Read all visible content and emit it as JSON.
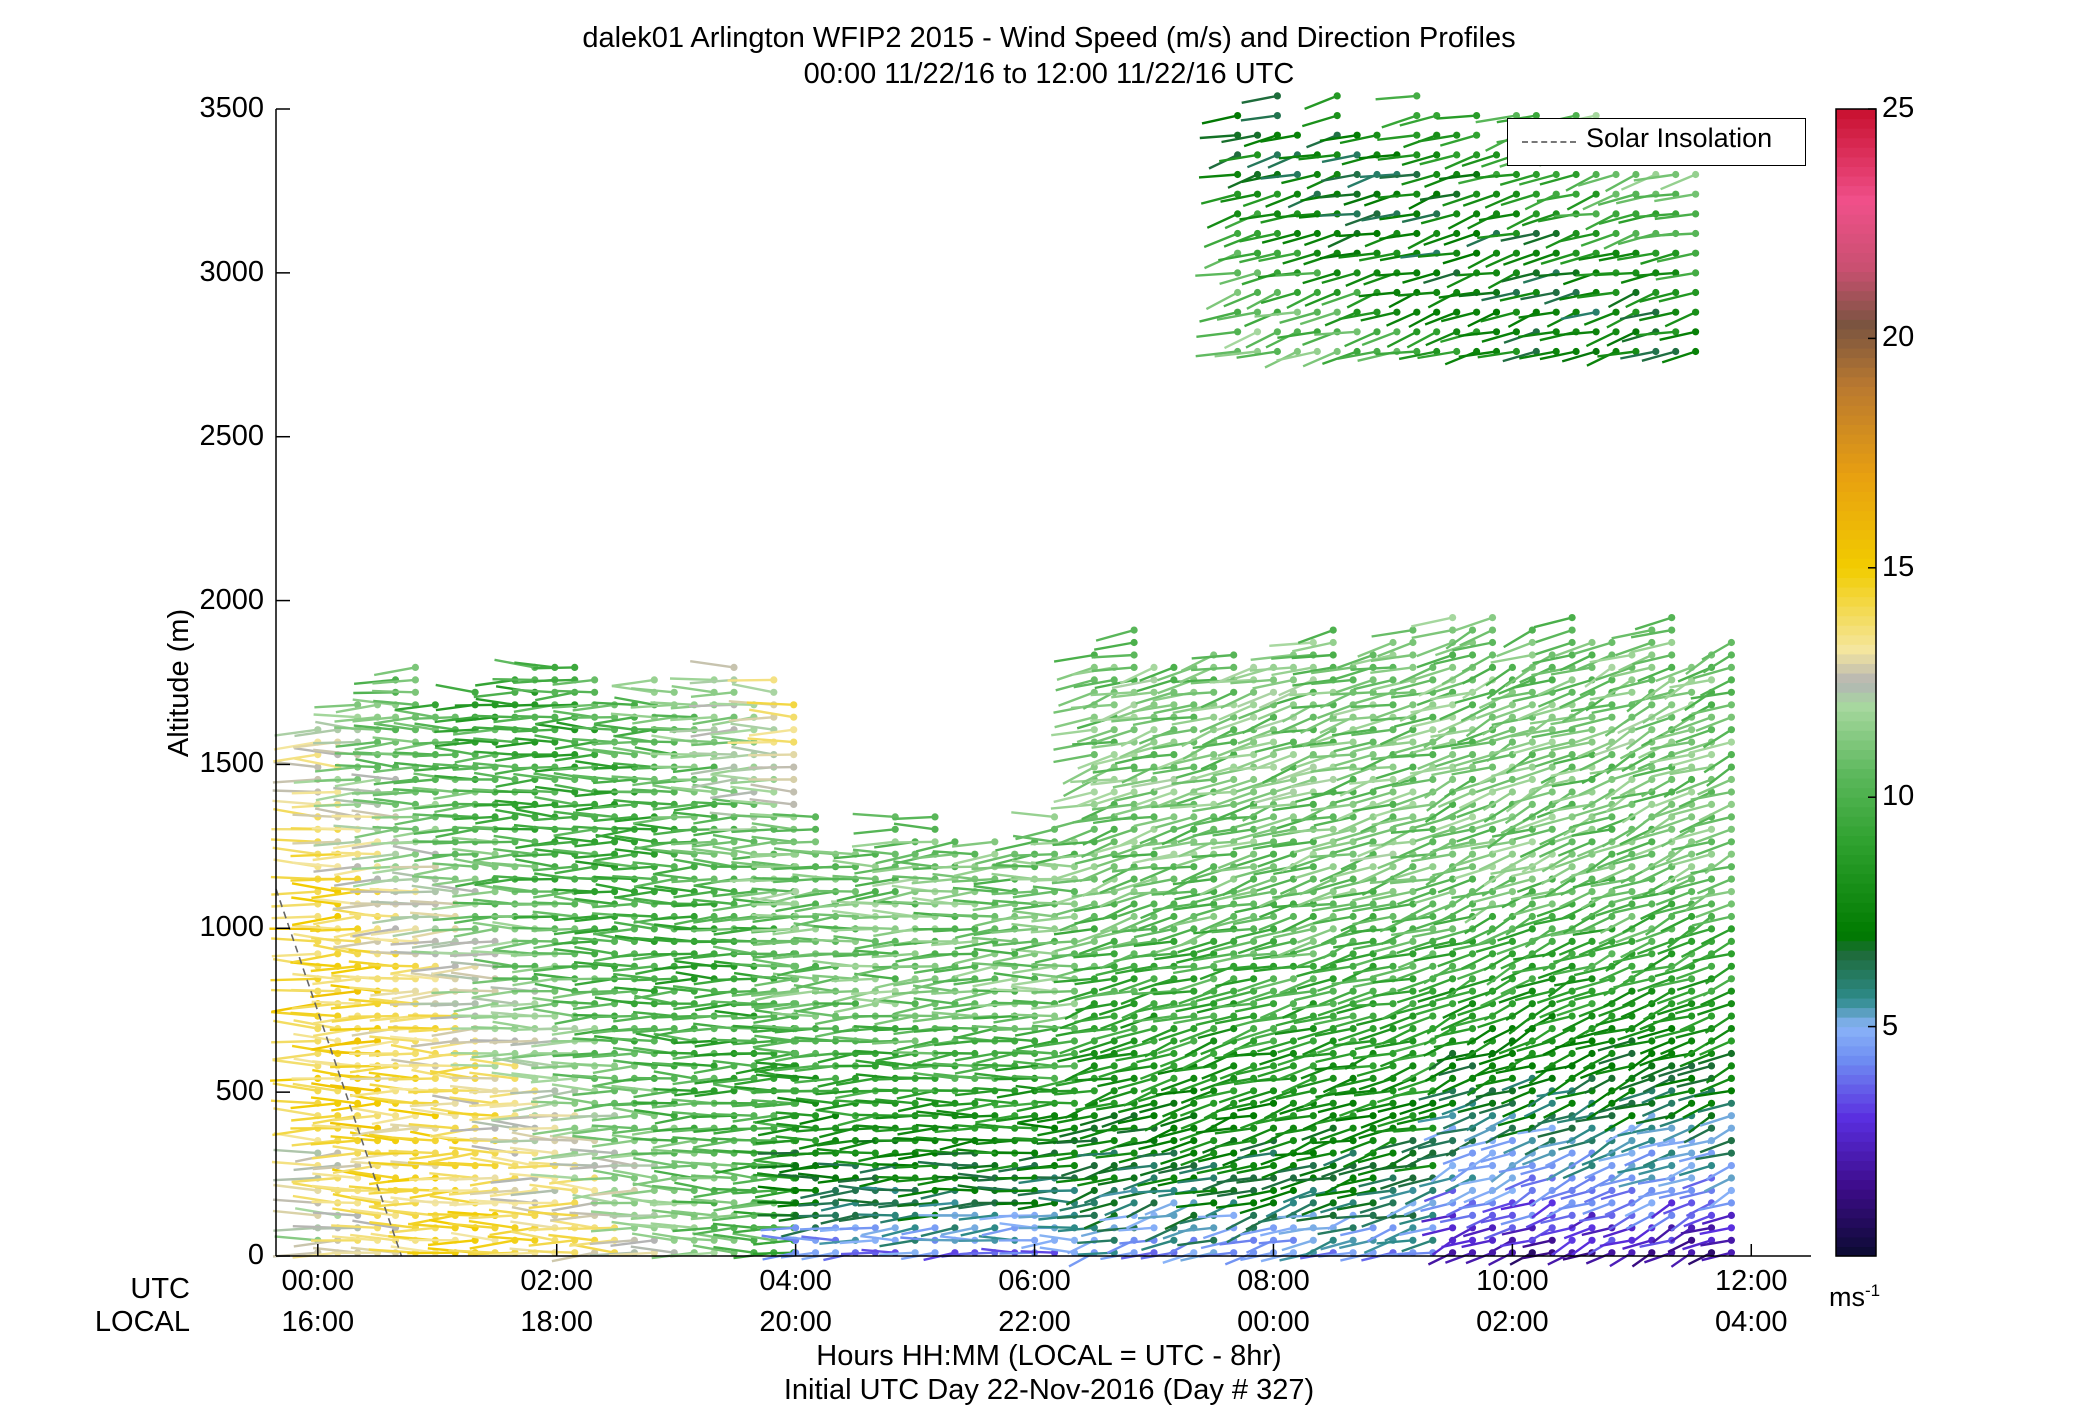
{
  "title_line1": "dalek01 Arlington WFIP2 2015 - Wind Speed (m/s) and Direction Profiles",
  "title_line2": "00:00 11/22/16 to 12:00 11/22/16  UTC",
  "ylabel": "Altitude (m)",
  "xlabel_line1": "Hours HH:MM  (LOCAL = UTC - 8hr)",
  "xlabel_line2": "Initial UTC Day 22-Nov-2016 (Day # 327)",
  "row_labels": {
    "utc": "UTC",
    "local": "LOCAL"
  },
  "colorbar_unit": "ms",
  "colorbar_unit_exp": "-1",
  "legend_label": "Solar Insolation",
  "chart_data": {
    "type": "scatter",
    "subtype": "wind barb profile (time-height)",
    "xlim_hours": [
      -0.35,
      12.5
    ],
    "ylim": [
      0,
      3500
    ],
    "yticks": [
      0,
      500,
      1000,
      1500,
      2000,
      2500,
      3000,
      3500
    ],
    "ytick_labels": [
      "0",
      "500",
      "1000",
      "1500",
      "2000",
      "2500",
      "3000",
      "3500"
    ],
    "xticks_hours": [
      0,
      2,
      4,
      6,
      8,
      10,
      12
    ],
    "xtick_labels_utc": [
      "00:00",
      "02:00",
      "04:00",
      "06:00",
      "08:00",
      "10:00",
      "12:00"
    ],
    "xtick_labels_local": [
      "16:00",
      "18:00",
      "20:00",
      "22:00",
      "00:00",
      "02:00",
      "04:00"
    ],
    "colorbar": {
      "min": 0,
      "max": 25,
      "ticks": [
        5,
        10,
        15,
        20,
        25
      ],
      "tick_labels": [
        "5",
        "10",
        "15",
        "20",
        "25"
      ]
    },
    "colormap": [
      [
        0,
        "#0b0b30"
      ],
      [
        1.5,
        "#3d0c8a"
      ],
      [
        3,
        "#5a2ee0"
      ],
      [
        4.3,
        "#6f8ef2"
      ],
      [
        5,
        "#8ab4f8"
      ],
      [
        5.6,
        "#2e8b8b"
      ],
      [
        6.6,
        "#1e6b3a"
      ],
      [
        7,
        "#007a00"
      ],
      [
        9,
        "#2ea12e"
      ],
      [
        10.5,
        "#5cb85c"
      ],
      [
        12,
        "#a8d8a0"
      ],
      [
        12.5,
        "#b4b4b4"
      ],
      [
        13.2,
        "#f4e6a0"
      ],
      [
        15,
        "#f2cc00"
      ],
      [
        17,
        "#e8a010"
      ],
      [
        19,
        "#b87830"
      ],
      [
        20.3,
        "#7a5440"
      ],
      [
        21.5,
        "#c85070"
      ],
      [
        23,
        "#f0508a"
      ],
      [
        25,
        "#c8102e"
      ]
    ],
    "solar_insolation_line": {
      "x_hours": [
        -0.35,
        0.7
      ],
      "y": [
        1120,
        0
      ]
    },
    "time_step_hours": 0.1667,
    "wind_regimes": [
      {
        "t": [
          0,
          0.65
        ],
        "z": [
          0,
          1700
        ],
        "speed_lo": 9,
        "speed_hi": 14.5,
        "direction_deg": 270
      },
      {
        "t": [
          0.65,
          4.0
        ],
        "z": [
          0,
          1750
        ],
        "speed_lo": 9.5,
        "speed_hi": 14,
        "direction_deg": 270
      },
      {
        "t": [
          4.0,
          6.5
        ],
        "z": [
          0,
          1300
        ],
        "speed_lo": 4,
        "speed_hi": 11,
        "direction_deg": 265
      },
      {
        "t": [
          6.5,
          9.5
        ],
        "z": [
          0,
          1850
        ],
        "speed_lo": 4.5,
        "speed_hi": 11,
        "direction_deg": 245
      },
      {
        "t": [
          9.5,
          11.9
        ],
        "z": [
          0,
          1900
        ],
        "speed_lo": 1.5,
        "speed_hi": 11,
        "direction_deg": 235
      },
      {
        "t": [
          7.7,
          11.6
        ],
        "z": [
          2750,
          3480
        ],
        "speed_lo": 7,
        "speed_hi": 11,
        "direction_deg": 245
      }
    ]
  }
}
